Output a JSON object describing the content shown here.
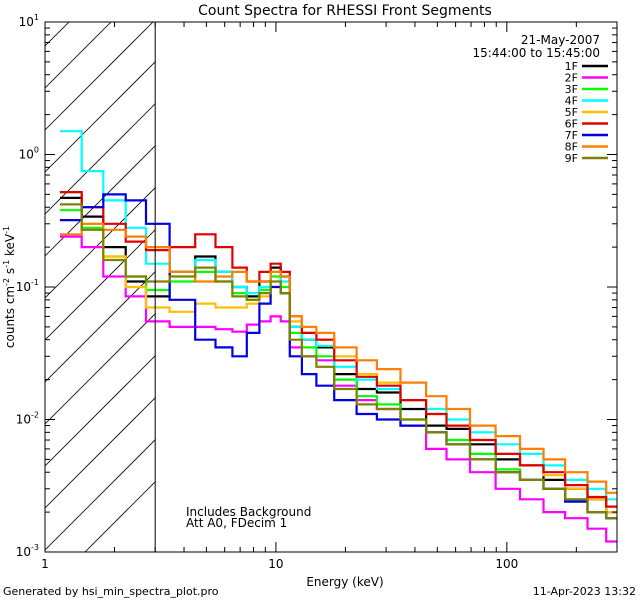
{
  "chart_data": {
    "type": "line",
    "title": "Count Spectra for RHESSI Front Segments",
    "xlabel": "Energy (keV)",
    "ylabel_parts": [
      "counts cm",
      "-2",
      " s",
      "-1",
      " keV",
      "-1"
    ],
    "x_scale": "log",
    "y_scale": "log",
    "xlim": [
      1,
      300
    ],
    "ylim": [
      0.001,
      10
    ],
    "x_ticks": [
      {
        "value": 1,
        "label": "1"
      },
      {
        "value": 10,
        "label": "10"
      },
      {
        "value": 100,
        "label": "100"
      }
    ],
    "y_ticks": [
      {
        "value": 0.001,
        "base": "10",
        "exp": "-3"
      },
      {
        "value": 0.01,
        "base": "10",
        "exp": "-2"
      },
      {
        "value": 0.1,
        "base": "10",
        "exp": "-1"
      },
      {
        "value": 1,
        "base": "10",
        "exp": "0"
      },
      {
        "value": 10,
        "base": "10",
        "exp": "1"
      }
    ],
    "date": "21-May-2007",
    "time_range": "15:44:00 to 15:45:00",
    "shaded_region_max_energy": 3,
    "annotation_lines": [
      "Includes Background",
      "Att A0, FDecim 1"
    ],
    "series": [
      {
        "name": "1F",
        "color": "#000000",
        "points": [
          [
            1.3,
            0.47
          ],
          [
            1.6,
            0.34
          ],
          [
            2.0,
            0.2
          ],
          [
            2.5,
            0.11
          ],
          [
            3.0,
            0.085
          ],
          [
            4.0,
            0.13
          ],
          [
            5.0,
            0.17
          ],
          [
            6.0,
            0.13
          ],
          [
            7.0,
            0.1
          ],
          [
            8.0,
            0.085
          ],
          [
            9.0,
            0.11
          ],
          [
            10.0,
            0.14
          ],
          [
            11.0,
            0.12
          ],
          [
            12.0,
            0.05
          ],
          [
            14.0,
            0.04
          ],
          [
            16.0,
            0.035
          ],
          [
            20.0,
            0.022
          ],
          [
            25.0,
            0.017
          ],
          [
            30.0,
            0.016
          ],
          [
            40.0,
            0.012
          ],
          [
            50.0,
            0.009
          ],
          [
            60.0,
            0.0085
          ],
          [
            80.0,
            0.0065
          ],
          [
            100.0,
            0.005
          ],
          [
            130.0,
            0.0045
          ],
          [
            160.0,
            0.0035
          ],
          [
            200.0,
            0.003
          ],
          [
            250.0,
            0.0025
          ],
          [
            290.0,
            0.002
          ]
        ]
      },
      {
        "name": "2F",
        "color": "#ff00ff",
        "points": [
          [
            1.3,
            0.24
          ],
          [
            1.6,
            0.2
          ],
          [
            2.0,
            0.12
          ],
          [
            2.5,
            0.085
          ],
          [
            3.0,
            0.055
          ],
          [
            4.0,
            0.05
          ],
          [
            5.0,
            0.05
          ],
          [
            6.0,
            0.048
          ],
          [
            7.0,
            0.046
          ],
          [
            8.0,
            0.052
          ],
          [
            9.0,
            0.055
          ],
          [
            10.0,
            0.06
          ],
          [
            11.0,
            0.055
          ],
          [
            12.0,
            0.035
          ],
          [
            14.0,
            0.03
          ],
          [
            16.0,
            0.028
          ],
          [
            20.0,
            0.018
          ],
          [
            25.0,
            0.014
          ],
          [
            30.0,
            0.012
          ],
          [
            40.0,
            0.009
          ],
          [
            50.0,
            0.006
          ],
          [
            60.0,
            0.005
          ],
          [
            80.0,
            0.004
          ],
          [
            100.0,
            0.003
          ],
          [
            130.0,
            0.0025
          ],
          [
            160.0,
            0.002
          ],
          [
            200.0,
            0.0018
          ],
          [
            250.0,
            0.0015
          ],
          [
            290.0,
            0.0012
          ]
        ]
      },
      {
        "name": "3F",
        "color": "#00ff00",
        "points": [
          [
            1.3,
            0.38
          ],
          [
            1.6,
            0.28
          ],
          [
            2.0,
            0.17
          ],
          [
            2.5,
            0.12
          ],
          [
            3.0,
            0.095
          ],
          [
            4.0,
            0.11
          ],
          [
            5.0,
            0.13
          ],
          [
            6.0,
            0.11
          ],
          [
            7.0,
            0.09
          ],
          [
            8.0,
            0.08
          ],
          [
            9.0,
            0.095
          ],
          [
            10.0,
            0.12
          ],
          [
            11.0,
            0.1
          ],
          [
            12.0,
            0.045
          ],
          [
            14.0,
            0.035
          ],
          [
            16.0,
            0.03
          ],
          [
            20.0,
            0.02
          ],
          [
            25.0,
            0.015
          ],
          [
            30.0,
            0.013
          ],
          [
            40.0,
            0.01
          ],
          [
            50.0,
            0.008
          ],
          [
            60.0,
            0.007
          ],
          [
            80.0,
            0.0055
          ],
          [
            100.0,
            0.0042
          ],
          [
            130.0,
            0.0035
          ],
          [
            160.0,
            0.003
          ],
          [
            200.0,
            0.0025
          ],
          [
            250.0,
            0.002
          ],
          [
            290.0,
            0.0018
          ]
        ]
      },
      {
        "name": "4F",
        "color": "#00ffff",
        "points": [
          [
            1.3,
            1.5
          ],
          [
            1.6,
            0.75
          ],
          [
            2.0,
            0.45
          ],
          [
            2.5,
            0.28
          ],
          [
            3.0,
            0.15
          ],
          [
            4.0,
            0.13
          ],
          [
            5.0,
            0.16
          ],
          [
            6.0,
            0.13
          ],
          [
            7.0,
            0.1
          ],
          [
            8.0,
            0.09
          ],
          [
            9.0,
            0.1
          ],
          [
            10.0,
            0.13
          ],
          [
            11.0,
            0.11
          ],
          [
            12.0,
            0.05
          ],
          [
            14.0,
            0.04
          ],
          [
            16.0,
            0.036
          ],
          [
            20.0,
            0.025
          ],
          [
            25.0,
            0.02
          ],
          [
            30.0,
            0.017
          ],
          [
            40.0,
            0.014
          ],
          [
            50.0,
            0.012
          ],
          [
            60.0,
            0.01
          ],
          [
            80.0,
            0.008
          ],
          [
            100.0,
            0.0065
          ],
          [
            130.0,
            0.0055
          ],
          [
            160.0,
            0.0045
          ],
          [
            200.0,
            0.0035
          ],
          [
            250.0,
            0.003
          ],
          [
            290.0,
            0.0025
          ]
        ]
      },
      {
        "name": "5F",
        "color": "#ffbf00",
        "points": [
          [
            1.3,
            0.52
          ],
          [
            1.6,
            0.3
          ],
          [
            2.0,
            0.17
          ],
          [
            2.5,
            0.1
          ],
          [
            3.0,
            0.07
          ],
          [
            4.0,
            0.065
          ],
          [
            5.0,
            0.075
          ],
          [
            6.0,
            0.07
          ],
          [
            7.0,
            0.07
          ],
          [
            8.0,
            0.075
          ],
          [
            9.0,
            0.085
          ],
          [
            10.0,
            0.1
          ],
          [
            11.0,
            0.09
          ],
          [
            12.0,
            0.055
          ],
          [
            14.0,
            0.045
          ],
          [
            16.0,
            0.04
          ],
          [
            20.0,
            0.03
          ],
          [
            25.0,
            0.022
          ],
          [
            30.0,
            0.019
          ],
          [
            40.0,
            0.014
          ],
          [
            50.0,
            0.011
          ],
          [
            60.0,
            0.009
          ],
          [
            80.0,
            0.007
          ],
          [
            100.0,
            0.0055
          ],
          [
            130.0,
            0.0045
          ],
          [
            160.0,
            0.0038
          ],
          [
            200.0,
            0.003
          ],
          [
            250.0,
            0.0025
          ],
          [
            290.0,
            0.002
          ]
        ]
      },
      {
        "name": "6F",
        "color": "#e00000",
        "points": [
          [
            1.3,
            0.52
          ],
          [
            1.6,
            0.4
          ],
          [
            2.0,
            0.3
          ],
          [
            2.5,
            0.22
          ],
          [
            3.0,
            0.19
          ],
          [
            4.0,
            0.2
          ],
          [
            5.0,
            0.25
          ],
          [
            6.0,
            0.2
          ],
          [
            7.0,
            0.14
          ],
          [
            8.0,
            0.11
          ],
          [
            9.0,
            0.13
          ],
          [
            10.0,
            0.15
          ],
          [
            11.0,
            0.13
          ],
          [
            12.0,
            0.06
          ],
          [
            14.0,
            0.045
          ],
          [
            16.0,
            0.04
          ],
          [
            20.0,
            0.028
          ],
          [
            25.0,
            0.021
          ],
          [
            30.0,
            0.018
          ],
          [
            40.0,
            0.014
          ],
          [
            50.0,
            0.011
          ],
          [
            60.0,
            0.009
          ],
          [
            80.0,
            0.007
          ],
          [
            100.0,
            0.0055
          ],
          [
            130.0,
            0.0045
          ],
          [
            160.0,
            0.004
          ],
          [
            200.0,
            0.0032
          ],
          [
            250.0,
            0.0026
          ],
          [
            290.0,
            0.0022
          ]
        ]
      },
      {
        "name": "7F",
        "color": "#0000e0",
        "points": [
          [
            1.3,
            0.32
          ],
          [
            1.6,
            0.4
          ],
          [
            2.0,
            0.5
          ],
          [
            2.5,
            0.45
          ],
          [
            3.0,
            0.3
          ],
          [
            4.0,
            0.08
          ],
          [
            5.0,
            0.04
          ],
          [
            6.0,
            0.035
          ],
          [
            7.0,
            0.03
          ],
          [
            8.0,
            0.045
          ],
          [
            9.0,
            0.075
          ],
          [
            10.0,
            0.1
          ],
          [
            11.0,
            0.09
          ],
          [
            12.0,
            0.03
          ],
          [
            14.0,
            0.022
          ],
          [
            16.0,
            0.018
          ],
          [
            20.0,
            0.014
          ],
          [
            25.0,
            0.011
          ],
          [
            30.0,
            0.01
          ],
          [
            40.0,
            0.009
          ],
          [
            50.0,
            0.008
          ],
          [
            60.0,
            0.0065
          ],
          [
            80.0,
            0.005
          ],
          [
            100.0,
            0.004
          ],
          [
            130.0,
            0.0035
          ],
          [
            160.0,
            0.003
          ],
          [
            200.0,
            0.0024
          ],
          [
            250.0,
            0.002
          ],
          [
            290.0,
            0.0018
          ]
        ]
      },
      {
        "name": "8F",
        "color": "#ff7f00",
        "points": [
          [
            1.3,
            0.25
          ],
          [
            1.6,
            0.3
          ],
          [
            2.0,
            0.27
          ],
          [
            2.5,
            0.24
          ],
          [
            3.0,
            0.2
          ],
          [
            4.0,
            0.13
          ],
          [
            5.0,
            0.11
          ],
          [
            6.0,
            0.12
          ],
          [
            7.0,
            0.13
          ],
          [
            8.0,
            0.11
          ],
          [
            9.0,
            0.11
          ],
          [
            10.0,
            0.13
          ],
          [
            11.0,
            0.12
          ],
          [
            12.0,
            0.06
          ],
          [
            14.0,
            0.05
          ],
          [
            16.0,
            0.045
          ],
          [
            20.0,
            0.035
          ],
          [
            25.0,
            0.028
          ],
          [
            30.0,
            0.024
          ],
          [
            40.0,
            0.019
          ],
          [
            50.0,
            0.015
          ],
          [
            60.0,
            0.012
          ],
          [
            80.0,
            0.009
          ],
          [
            100.0,
            0.0075
          ],
          [
            130.0,
            0.006
          ],
          [
            160.0,
            0.005
          ],
          [
            200.0,
            0.004
          ],
          [
            250.0,
            0.0034
          ],
          [
            290.0,
            0.0028
          ]
        ]
      },
      {
        "name": "9F",
        "color": "#808000",
        "points": [
          [
            1.3,
            0.42
          ],
          [
            1.6,
            0.27
          ],
          [
            2.0,
            0.16
          ],
          [
            2.5,
            0.12
          ],
          [
            3.0,
            0.11
          ],
          [
            4.0,
            0.12
          ],
          [
            5.0,
            0.14
          ],
          [
            6.0,
            0.11
          ],
          [
            7.0,
            0.085
          ],
          [
            8.0,
            0.08
          ],
          [
            9.0,
            0.09
          ],
          [
            10.0,
            0.11
          ],
          [
            11.0,
            0.09
          ],
          [
            12.0,
            0.04
          ],
          [
            14.0,
            0.03
          ],
          [
            16.0,
            0.025
          ],
          [
            20.0,
            0.017
          ],
          [
            25.0,
            0.013
          ],
          [
            30.0,
            0.012
          ],
          [
            40.0,
            0.01
          ],
          [
            50.0,
            0.008
          ],
          [
            60.0,
            0.0065
          ],
          [
            80.0,
            0.005
          ],
          [
            100.0,
            0.004
          ],
          [
            130.0,
            0.0035
          ],
          [
            160.0,
            0.003
          ],
          [
            200.0,
            0.0025
          ],
          [
            250.0,
            0.002
          ],
          [
            290.0,
            0.0018
          ]
        ]
      }
    ]
  },
  "footer": {
    "generated_by": "Generated by hsi_min_spectra_plot.pro",
    "timestamp": "11-Apr-2023 13:32"
  }
}
